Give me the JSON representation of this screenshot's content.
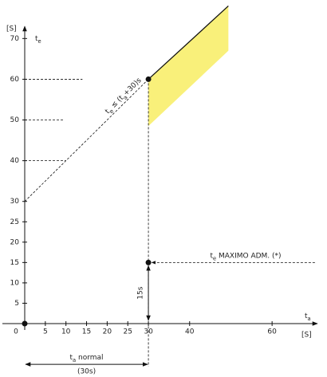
{
  "y_unit": "[S]",
  "x_unit": "[S]",
  "y_label": [
    {
      "text": "t"
    },
    {
      "sub": "e"
    }
  ],
  "x_label": [
    {
      "text": "t"
    },
    {
      "sub": "a"
    }
  ],
  "chart_data": {
    "type": "line",
    "xlim": [
      0,
      71
    ],
    "ylim": [
      0,
      73
    ],
    "xticks": [
      0,
      5,
      10,
      15,
      20,
      25,
      30,
      40,
      60
    ],
    "yticks": [
      5,
      10,
      15,
      20,
      25,
      30,
      40,
      50,
      60,
      70
    ],
    "extrapolation": {
      "x": [
        0,
        30
      ],
      "y": [
        30,
        60
      ]
    },
    "limit": {
      "x": [
        30,
        49.4
      ],
      "y": [
        60,
        78
      ]
    },
    "band": {
      "x": [
        30,
        49.4,
        49.4,
        30
      ],
      "y": [
        60,
        78,
        67,
        48.5
      ],
      "color": "#f9f07a"
    },
    "points": {
      "x": [
        0,
        30,
        30
      ],
      "y": [
        0,
        60,
        15
      ]
    },
    "guides": {
      "y": [
        40,
        50,
        60
      ],
      "x_end": [
        10,
        9.5,
        14
      ]
    },
    "vertical_guide": {
      "x": 30,
      "y": [
        60,
        -10.5
      ]
    },
    "max_arrow": {
      "y": 15,
      "x": [
        70.4,
        30.8
      ],
      "label": [
        {
          "text": "t"
        },
        {
          "sub": "e"
        },
        {
          "text": " MAXIMO ADM. (*)"
        }
      ]
    },
    "limit_label": [
      {
        "text": "t"
      },
      {
        "sub": "e"
      },
      {
        "text": " ≤ (t"
      },
      {
        "sub": "a"
      },
      {
        "text": "+30)s"
      }
    ],
    "tolerance": {
      "x": 30,
      "y": [
        15,
        0
      ],
      "label": "15s"
    },
    "normal": {
      "x": [
        0,
        30
      ],
      "y": -10,
      "label": [
        {
          "text": "t"
        },
        {
          "sub": "a"
        },
        {
          "text": " normal"
        }
      ],
      "note": "(30s)"
    }
  }
}
